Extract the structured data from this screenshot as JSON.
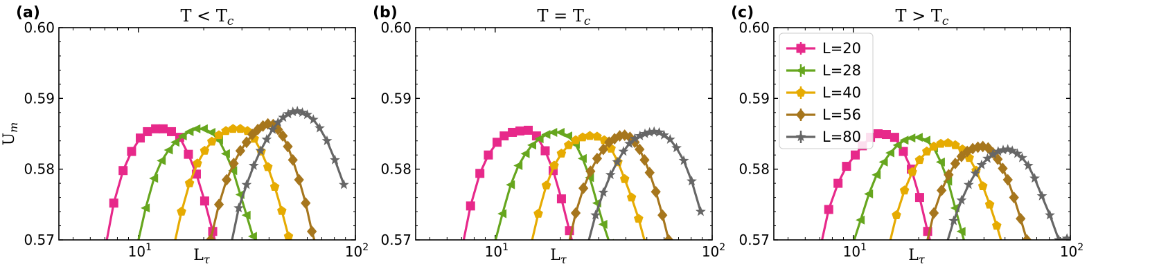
{
  "chart_data": [
    {
      "type": "line",
      "panel_label": "(a)",
      "title_main": "T < T",
      "title_sub": "c",
      "ylabel_main": "U",
      "ylabel_sub": "m",
      "xlabel_main": "L",
      "xlabel_sub": "τ",
      "xscale": "log",
      "xlim": [
        4.3,
        100
      ],
      "ylim": [
        0.57,
        0.6
      ],
      "xticks": [
        {
          "base": "10",
          "exp": "1",
          "value": 10
        },
        {
          "base": "10",
          "exp": "2",
          "value": 100
        }
      ],
      "yticks": [
        "0.57",
        "0.58",
        "0.59",
        "0.60"
      ],
      "legend": false,
      "series": [
        {
          "name": "L=20",
          "color": "#e7298a",
          "marker": "square",
          "x": [
            7.0,
            7.7,
            8.5,
            9.3,
            10.2,
            11.0,
            12.0,
            13.0,
            14.2,
            15.5,
            17.0,
            18.5,
            20.2,
            22.0,
            24.0
          ],
          "y": [
            0.5685,
            0.5752,
            0.5798,
            0.5825,
            0.5844,
            0.5853,
            0.5857,
            0.5857,
            0.5853,
            0.5845,
            0.5821,
            0.5793,
            0.5755,
            0.5712,
            0.5665
          ]
        },
        {
          "name": "L=28",
          "color": "#66a61e",
          "marker": "tri_left",
          "x": [
            9.8,
            10.8,
            11.8,
            12.8,
            13.8,
            14.8,
            16.0,
            17.2,
            18.5,
            20.0,
            21.7,
            23.5,
            25.3,
            27.3,
            29.5,
            31.5,
            33.7
          ],
          "y": [
            0.5688,
            0.5745,
            0.5787,
            0.5812,
            0.5827,
            0.5838,
            0.5847,
            0.5853,
            0.5857,
            0.5857,
            0.5852,
            0.5841,
            0.5822,
            0.5798,
            0.5764,
            0.5735,
            0.5705
          ]
        },
        {
          "name": "L=40",
          "color": "#e6ab02",
          "marker": "pentagon",
          "x": [
            14.5,
            15.8,
            17.2,
            18.7,
            20.2,
            21.8,
            23.5,
            25.3,
            27.3,
            29.5,
            31.8,
            34.2,
            36.8,
            39.5,
            42.5,
            45.8,
            49.2
          ],
          "y": [
            0.5688,
            0.574,
            0.578,
            0.5808,
            0.5826,
            0.5839,
            0.5848,
            0.5854,
            0.5857,
            0.5857,
            0.5854,
            0.5843,
            0.5825,
            0.5803,
            0.5775,
            0.5741,
            0.5705
          ]
        },
        {
          "name": "L=56",
          "color": "#a6761d",
          "marker": "diamond",
          "x": [
            21.5,
            23.5,
            25.5,
            27.5,
            29.5,
            31.5,
            33.5,
            35.5,
            37.5,
            39.5,
            41.8,
            44.0,
            46.3,
            48.8,
            51.5,
            55.0,
            59.0,
            63.0,
            67.5
          ],
          "y": [
            0.57,
            0.575,
            0.5785,
            0.5808,
            0.5826,
            0.5838,
            0.5849,
            0.5856,
            0.5861,
            0.5864,
            0.5863,
            0.5856,
            0.5847,
            0.5832,
            0.5813,
            0.5785,
            0.5752,
            0.5712,
            0.568
          ]
        },
        {
          "name": "L=80",
          "color": "#666666",
          "marker": "star",
          "x": [
            26.5,
            29.0,
            31.5,
            34.0,
            36.5,
            39.0,
            41.5,
            44.0,
            46.5,
            49.0,
            51.5,
            54.0,
            57.0,
            60.0,
            64.0,
            68.5,
            74.0,
            80.5,
            88.5
          ],
          "y": [
            0.5688,
            0.5745,
            0.5778,
            0.5805,
            0.5826,
            0.5842,
            0.5856,
            0.5866,
            0.5873,
            0.5878,
            0.5881,
            0.5882,
            0.588,
            0.5877,
            0.587,
            0.5858,
            0.584,
            0.5813,
            0.5778
          ]
        }
      ]
    },
    {
      "type": "line",
      "panel_label": "(b)",
      "title_main": "T = T",
      "title_sub": "c",
      "xlabel_main": "L",
      "xlabel_sub": "τ",
      "xscale": "log",
      "xlim": [
        4.3,
        100
      ],
      "ylim": [
        0.57,
        0.6
      ],
      "xticks": [
        {
          "base": "10",
          "exp": "1",
          "value": 10
        },
        {
          "base": "10",
          "exp": "2",
          "value": 100
        }
      ],
      "yticks": [
        "0.57",
        "0.58",
        "0.59",
        "0.60"
      ],
      "legend": false,
      "series": [
        {
          "name": "L=20",
          "color": "#e7298a",
          "marker": "square",
          "x": [
            7.0,
            7.7,
            8.5,
            9.3,
            10.2,
            11.0,
            12.0,
            13.0,
            14.2,
            15.5,
            17.0,
            18.5,
            20.2,
            22.0,
            24.0
          ],
          "y": [
            0.5685,
            0.5748,
            0.5794,
            0.582,
            0.5838,
            0.5847,
            0.5852,
            0.5854,
            0.5855,
            0.5847,
            0.5826,
            0.5798,
            0.5758,
            0.5713,
            0.5667
          ]
        },
        {
          "name": "L=28",
          "color": "#66a61e",
          "marker": "tri_left",
          "x": [
            9.8,
            10.8,
            11.8,
            12.8,
            13.8,
            14.8,
            16.0,
            17.2,
            18.5,
            20.0,
            21.7,
            23.5,
            25.3,
            27.3,
            29.5,
            31.5,
            33.7
          ],
          "y": [
            0.5688,
            0.5737,
            0.5778,
            0.5805,
            0.5822,
            0.5834,
            0.5843,
            0.5849,
            0.5852,
            0.5852,
            0.5847,
            0.5835,
            0.5815,
            0.5788,
            0.5752,
            0.5722,
            0.5695
          ]
        },
        {
          "name": "L=40",
          "color": "#e6ab02",
          "marker": "pentagon",
          "x": [
            14.5,
            15.8,
            17.2,
            18.7,
            20.2,
            21.8,
            23.5,
            25.3,
            27.3,
            29.5,
            31.8,
            34.2,
            36.8,
            39.5,
            42.5,
            45.8,
            49.2
          ],
          "y": [
            0.5688,
            0.5737,
            0.5777,
            0.5805,
            0.5822,
            0.5834,
            0.5841,
            0.5845,
            0.5847,
            0.5846,
            0.5841,
            0.5829,
            0.581,
            0.5786,
            0.576,
            0.573,
            0.5695
          ]
        },
        {
          "name": "L=56",
          "color": "#a6761d",
          "marker": "diamond",
          "x": [
            21.5,
            23.5,
            25.5,
            27.5,
            29.5,
            31.5,
            33.5,
            35.5,
            37.5,
            39.5,
            41.8,
            44.0,
            46.3,
            48.8,
            51.5,
            55.0,
            59.0,
            63.0,
            67.5
          ],
          "y": [
            0.5685,
            0.5738,
            0.5773,
            0.5797,
            0.5815,
            0.5828,
            0.5838,
            0.5843,
            0.5847,
            0.5848,
            0.5845,
            0.5838,
            0.5828,
            0.5813,
            0.5795,
            0.5768,
            0.5735,
            0.57,
            0.5675
          ]
        },
        {
          "name": "L=80",
          "color": "#666666",
          "marker": "star",
          "x": [
            26.5,
            29.0,
            31.5,
            34.0,
            36.5,
            39.0,
            41.5,
            44.0,
            46.5,
            49.0,
            51.5,
            54.0,
            57.0,
            60.0,
            64.0,
            68.5,
            74.0,
            80.5,
            88.5
          ],
          "y": [
            0.569,
            0.5735,
            0.5767,
            0.5792,
            0.581,
            0.5825,
            0.5836,
            0.5843,
            0.5847,
            0.585,
            0.5852,
            0.5853,
            0.5852,
            0.5848,
            0.5842,
            0.583,
            0.5812,
            0.5783,
            0.574
          ]
        }
      ]
    },
    {
      "type": "line",
      "panel_label": "(c)",
      "title_main": "T > T",
      "title_sub": "c",
      "xlabel_main": "L",
      "xlabel_sub": "τ",
      "xscale": "log",
      "xlim": [
        4.3,
        100
      ],
      "ylim": [
        0.57,
        0.6
      ],
      "xticks": [
        {
          "base": "10",
          "exp": "1",
          "value": 10
        },
        {
          "base": "10",
          "exp": "2",
          "value": 100
        }
      ],
      "yticks": [
        "0.57",
        "0.58",
        "0.59",
        "0.60"
      ],
      "legend": true,
      "legend_loc": "upper left",
      "series": [
        {
          "name": "L=20",
          "color": "#e7298a",
          "marker": "square",
          "x": [
            7.0,
            7.7,
            8.5,
            9.3,
            10.2,
            11.0,
            12.0,
            13.0,
            14.2,
            15.5,
            17.0,
            18.5,
            20.2,
            22.0,
            24.0
          ],
          "y": [
            0.5685,
            0.5743,
            0.578,
            0.5804,
            0.582,
            0.5833,
            0.5845,
            0.585,
            0.5849,
            0.5845,
            0.5825,
            0.58,
            0.576,
            0.5712,
            0.5668
          ]
        },
        {
          "name": "L=28",
          "color": "#66a61e",
          "marker": "tri_left",
          "x": [
            9.8,
            10.8,
            11.8,
            12.8,
            13.8,
            14.8,
            16.0,
            17.2,
            18.5,
            20.0,
            21.7,
            23.5,
            25.3,
            27.3,
            29.5,
            31.5,
            33.7
          ],
          "y": [
            0.5688,
            0.5728,
            0.5765,
            0.5792,
            0.581,
            0.5823,
            0.5834,
            0.5841,
            0.5844,
            0.5845,
            0.5841,
            0.583,
            0.581,
            0.5783,
            0.5745,
            0.5712,
            0.568
          ]
        },
        {
          "name": "L=40",
          "color": "#e6ab02",
          "marker": "pentagon",
          "x": [
            14.5,
            15.8,
            17.2,
            18.7,
            20.2,
            21.8,
            23.5,
            25.3,
            27.3,
            29.5,
            31.8,
            34.2,
            36.8,
            39.5,
            42.5,
            45.8,
            49.2
          ],
          "y": [
            0.5688,
            0.5735,
            0.577,
            0.5796,
            0.5813,
            0.5825,
            0.5832,
            0.5836,
            0.5837,
            0.5834,
            0.5828,
            0.5816,
            0.5798,
            0.5776,
            0.575,
            0.572,
            0.5688
          ]
        },
        {
          "name": "L=56",
          "color": "#a6761d",
          "marker": "diamond",
          "x": [
            21.5,
            23.5,
            25.5,
            27.5,
            29.5,
            31.5,
            33.5,
            35.5,
            37.5,
            39.5,
            41.8,
            44.0,
            46.3,
            48.8,
            51.5,
            55.0,
            59.0,
            63.0,
            67.5
          ],
          "y": [
            0.5688,
            0.5738,
            0.577,
            0.5792,
            0.5808,
            0.5818,
            0.5825,
            0.5829,
            0.5831,
            0.5832,
            0.583,
            0.5823,
            0.5814,
            0.5801,
            0.5785,
            0.576,
            0.573,
            0.57,
            0.5672
          ]
        },
        {
          "name": "L=80",
          "color": "#666666",
          "marker": "star",
          "x": [
            26.5,
            29.0,
            31.5,
            34.0,
            36.5,
            39.0,
            41.5,
            44.0,
            46.5,
            49.0,
            51.5,
            54.0,
            57.0,
            60.0,
            64.0,
            68.5,
            74.0,
            80.5,
            88.5,
            96.5
          ],
          "y": [
            0.5688,
            0.5727,
            0.5756,
            0.5778,
            0.5794,
            0.5806,
            0.5815,
            0.5821,
            0.5825,
            0.5827,
            0.5828,
            0.5826,
            0.5822,
            0.5816,
            0.5805,
            0.5787,
            0.5762,
            0.5735,
            0.57,
            0.5702
          ]
        }
      ]
    }
  ]
}
